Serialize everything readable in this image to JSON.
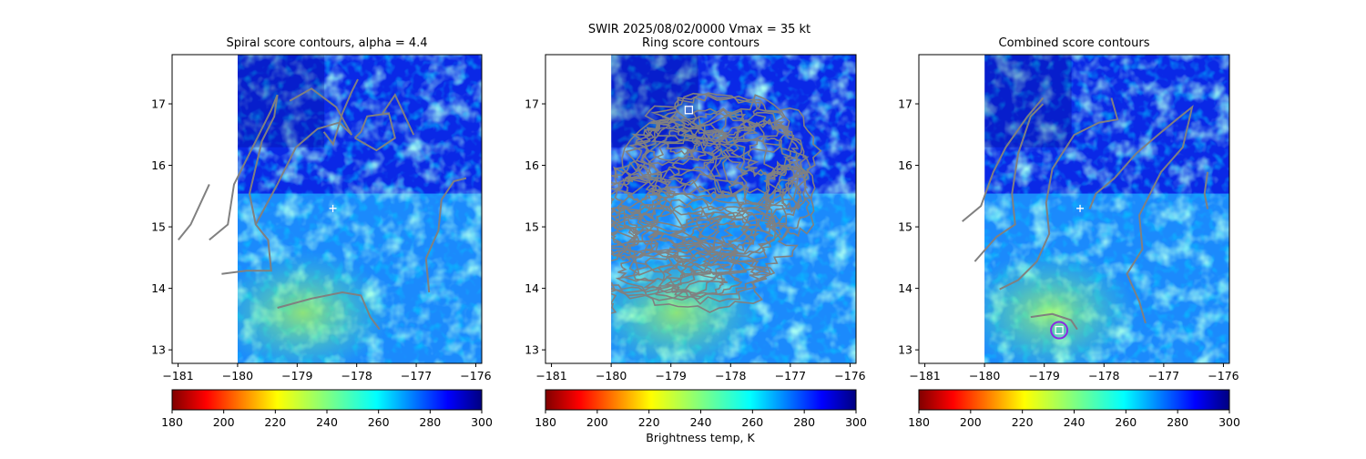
{
  "figure": {
    "suptitle_line1": "SWIR  2025/08/02/0000    Vmax = 35 kt",
    "colorbar_label": "Brightness temp, K"
  },
  "chart_data": [
    {
      "type": "heatmap",
      "title": "Spiral score contours, alpha =  4.4",
      "x_ticks": [
        -181,
        -180,
        -179,
        -178,
        -177,
        -176
      ],
      "y_ticks": [
        13,
        14,
        15,
        16,
        17
      ],
      "xlim": [
        -181.1,
        -175.9
      ],
      "ylim": [
        12.78,
        17.8
      ],
      "no_data_lon_max": -180.0,
      "center_marker": {
        "lon": -178.4,
        "lat": 15.3,
        "shape": "plus"
      },
      "contours": "spiral score contours (gray)"
    },
    {
      "type": "heatmap",
      "title": "Ring score contours",
      "x_ticks": [
        -181,
        -180,
        -179,
        -178,
        -177,
        -176
      ],
      "y_ticks": [
        13,
        14,
        15,
        16,
        17
      ],
      "xlim": [
        -181.1,
        -175.9
      ],
      "ylim": [
        12.78,
        17.8
      ],
      "no_data_lon_max": -180.0,
      "center_marker": {
        "lon": -178.7,
        "lat": 16.9,
        "shape": "square"
      },
      "contours": "ring score contours (gray)"
    },
    {
      "type": "heatmap",
      "title": "Combined score contours",
      "x_ticks": [
        -181,
        -180,
        -179,
        -178,
        -177,
        -176
      ],
      "y_ticks": [
        13,
        14,
        15,
        16,
        17
      ],
      "xlim": [
        -181.1,
        -175.9
      ],
      "ylim": [
        12.78,
        17.8
      ],
      "no_data_lon_max": -180.0,
      "center_marker": {
        "lon": -178.4,
        "lat": 15.3,
        "shape": "plus"
      },
      "best_center": {
        "lon": -178.75,
        "lat": 13.32,
        "shape": "square + circle"
      },
      "contours": "combined score contours (gray)"
    }
  ],
  "colorbar": {
    "cmap": "jet_r",
    "vmin": 180,
    "vmax": 300,
    "ticks": [
      180,
      200,
      220,
      240,
      260,
      280,
      300
    ]
  },
  "colors": {
    "contour": "#808080",
    "marker": "#ffffff",
    "best_circle": "#8a2be2"
  }
}
